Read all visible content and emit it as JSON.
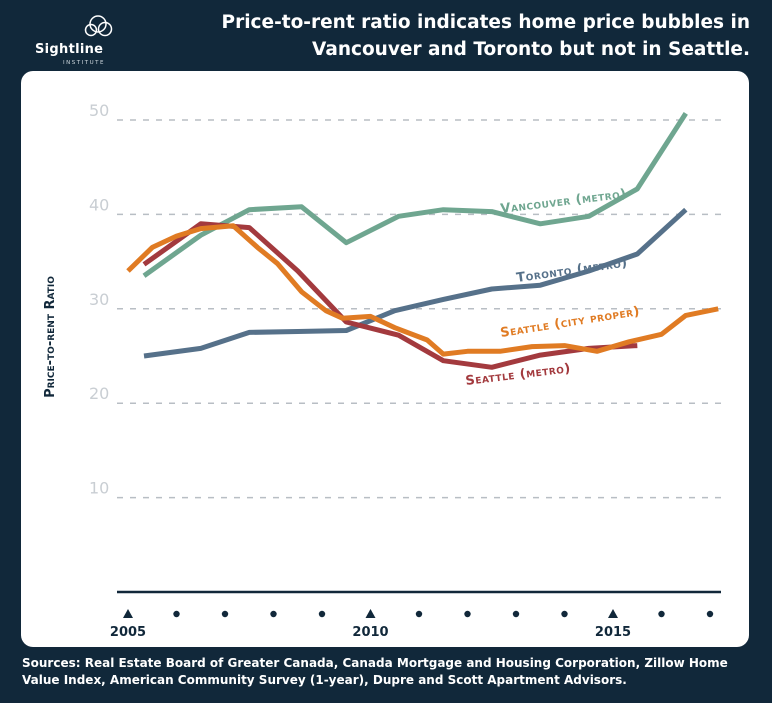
{
  "brand": {
    "name": "Sightline",
    "sub": "INSTITUTE"
  },
  "colors": {
    "background": "#11283a",
    "vancouver": "#6fa690",
    "toronto": "#56718a",
    "seattle_city": "#e07b23",
    "seattle_metro": "#a33a3e",
    "grid": "#b8bec4"
  },
  "chart_data": {
    "type": "line",
    "title": "Price-to-rent ratio indicates home price bubbles in Vancouver and Toronto but not in Seattle.",
    "ylabel": "Price-to-rent Ratio",
    "xlabel": "",
    "ylim": [
      0,
      50
    ],
    "xlim": [
      2005,
      2017
    ],
    "y_ticks": [
      10,
      20,
      30,
      40,
      50
    ],
    "x_tick_labels": [
      {
        "x": 2005,
        "label": "2005"
      },
      {
        "x": 2010,
        "label": "2010"
      },
      {
        "x": 2015,
        "label": "2015"
      }
    ],
    "x_dot_marks": [
      2006,
      2007,
      2008,
      2009,
      2011,
      2012,
      2013,
      2014,
      2016,
      2017
    ],
    "grid": "horizontal-dashed",
    "series": [
      {
        "name": "Vancouver (metro)",
        "color": "#6fa690",
        "x": [
          2005.33,
          2006.5,
          2007.5,
          2008.58,
          2009.5,
          2010.58,
          2011.5,
          2012.5,
          2013.5,
          2014.5,
          2015.5,
          2016.5
        ],
        "y": [
          33.5,
          37.8,
          40.5,
          40.8,
          37.0,
          39.8,
          40.5,
          40.3,
          39.0,
          39.8,
          42.7,
          50.7
        ]
      },
      {
        "name": "Toronto (metro)",
        "color": "#56718a",
        "x": [
          2005.33,
          2006.5,
          2007.5,
          2008.5,
          2009.5,
          2010.5,
          2011.5,
          2012.5,
          2013.5,
          2014.5,
          2015.5,
          2016.5
        ],
        "y": [
          25.0,
          25.8,
          27.5,
          27.6,
          27.7,
          29.8,
          31.0,
          32.1,
          32.5,
          34.0,
          35.8,
          40.5
        ]
      },
      {
        "name": "Seattle (city proper)",
        "color": "#e07b23",
        "x": [
          2005.0,
          2005.5,
          2006.0,
          2006.5,
          2007.17,
          2007.67,
          2008.08,
          2008.58,
          2009.08,
          2009.42,
          2010.0,
          2010.5,
          2011.17,
          2011.5,
          2012.0,
          2012.67,
          2013.33,
          2014.0,
          2014.67,
          2015.33,
          2016.0,
          2016.5,
          2017.17
        ],
        "y": [
          34.0,
          36.5,
          37.7,
          38.5,
          38.8,
          36.5,
          34.8,
          31.8,
          29.8,
          29.0,
          29.2,
          28.0,
          26.7,
          25.2,
          25.5,
          25.5,
          26.0,
          26.1,
          25.5,
          26.5,
          27.3,
          29.3,
          30.0
        ]
      },
      {
        "name": "Seattle (metro)",
        "color": "#a33a3e",
        "x": [
          2005.33,
          2006.5,
          2007.5,
          2008.5,
          2009.5,
          2010.58,
          2011.5,
          2012.5,
          2013.5,
          2014.5,
          2015.5
        ],
        "y": [
          34.7,
          39.0,
          38.6,
          34.0,
          28.6,
          27.2,
          24.5,
          23.8,
          25.1,
          25.8,
          26.1
        ]
      }
    ],
    "series_labels": [
      {
        "text": "Vancouver (metro)",
        "color": "#6fa690"
      },
      {
        "text": "Toronto (metro)",
        "color": "#56718a"
      },
      {
        "text": "Seattle (city proper)",
        "color": "#e07b23"
      },
      {
        "text": "Seattle (metro)",
        "color": "#a33a3e"
      }
    ]
  },
  "source_note": "Sources: Real Estate Board of Greater Canada, Canada Mortgage and Housing Corporation, Zillow Home Value Index, American Community Survey (1-year), Dupre and Scott Apartment Advisors."
}
